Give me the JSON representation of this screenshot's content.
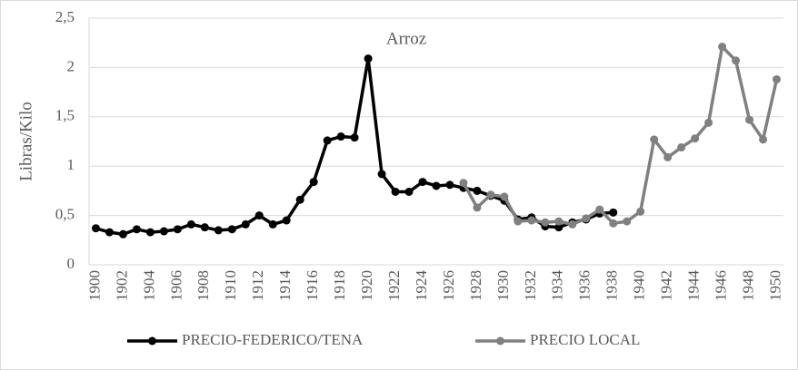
{
  "chart_data": {
    "type": "line",
    "title": "Arroz",
    "y_label": "Libras/Kilo",
    "categories": [
      "1900",
      null,
      "1902",
      null,
      "1904",
      null,
      "1906",
      null,
      "1908",
      null,
      "1910",
      null,
      "1912",
      null,
      "1914",
      null,
      "1916",
      null,
      "1918",
      null,
      "1920",
      null,
      "1922",
      null,
      "1924",
      null,
      "1926",
      null,
      "1928",
      null,
      "1930",
      null,
      "1932",
      null,
      "1934",
      null,
      "1936",
      null,
      "1938",
      null,
      "1940",
      null,
      "1942",
      null,
      "1944",
      null,
      "1946",
      null,
      "1948",
      null,
      "1950"
    ],
    "series": [
      {
        "name": "PRECIO-FEDERICO/TENA",
        "color": "#000000",
        "values": [
          0.37,
          0.33,
          0.31,
          0.36,
          0.33,
          0.34,
          0.36,
          0.41,
          0.38,
          0.35,
          0.36,
          0.41,
          0.5,
          0.41,
          0.45,
          0.66,
          0.84,
          1.26,
          1.3,
          1.29,
          2.09,
          0.92,
          0.74,
          0.74,
          0.84,
          0.8,
          0.81,
          0.78,
          0.75,
          0.7,
          0.65,
          0.46,
          0.48,
          0.39,
          0.38,
          0.43,
          0.46,
          0.52,
          0.53,
          null,
          null,
          null,
          null,
          null,
          null,
          null,
          null,
          null,
          null,
          null,
          null
        ]
      },
      {
        "name": "PRECIO LOCAL",
        "color": "#808080",
        "values": [
          null,
          null,
          null,
          null,
          null,
          null,
          null,
          null,
          null,
          null,
          null,
          null,
          null,
          null,
          null,
          null,
          null,
          null,
          null,
          null,
          null,
          null,
          null,
          null,
          null,
          null,
          null,
          0.83,
          0.58,
          0.71,
          0.69,
          0.44,
          0.45,
          0.43,
          0.44,
          0.41,
          0.47,
          0.56,
          0.42,
          0.44,
          0.54,
          1.27,
          1.09,
          1.19,
          1.28,
          1.44,
          2.21,
          2.07,
          1.47,
          1.27,
          1.88
        ]
      }
    ],
    "ylim": [
      0,
      2.5
    ],
    "yticks": [
      0,
      {
        "value": 0.5,
        "label": "0,5"
      },
      1,
      {
        "value": 1.5,
        "label": "1,5"
      },
      2,
      {
        "value": 2.5,
        "label": "2,5"
      }
    ],
    "grid": true,
    "legend": "bottom"
  }
}
